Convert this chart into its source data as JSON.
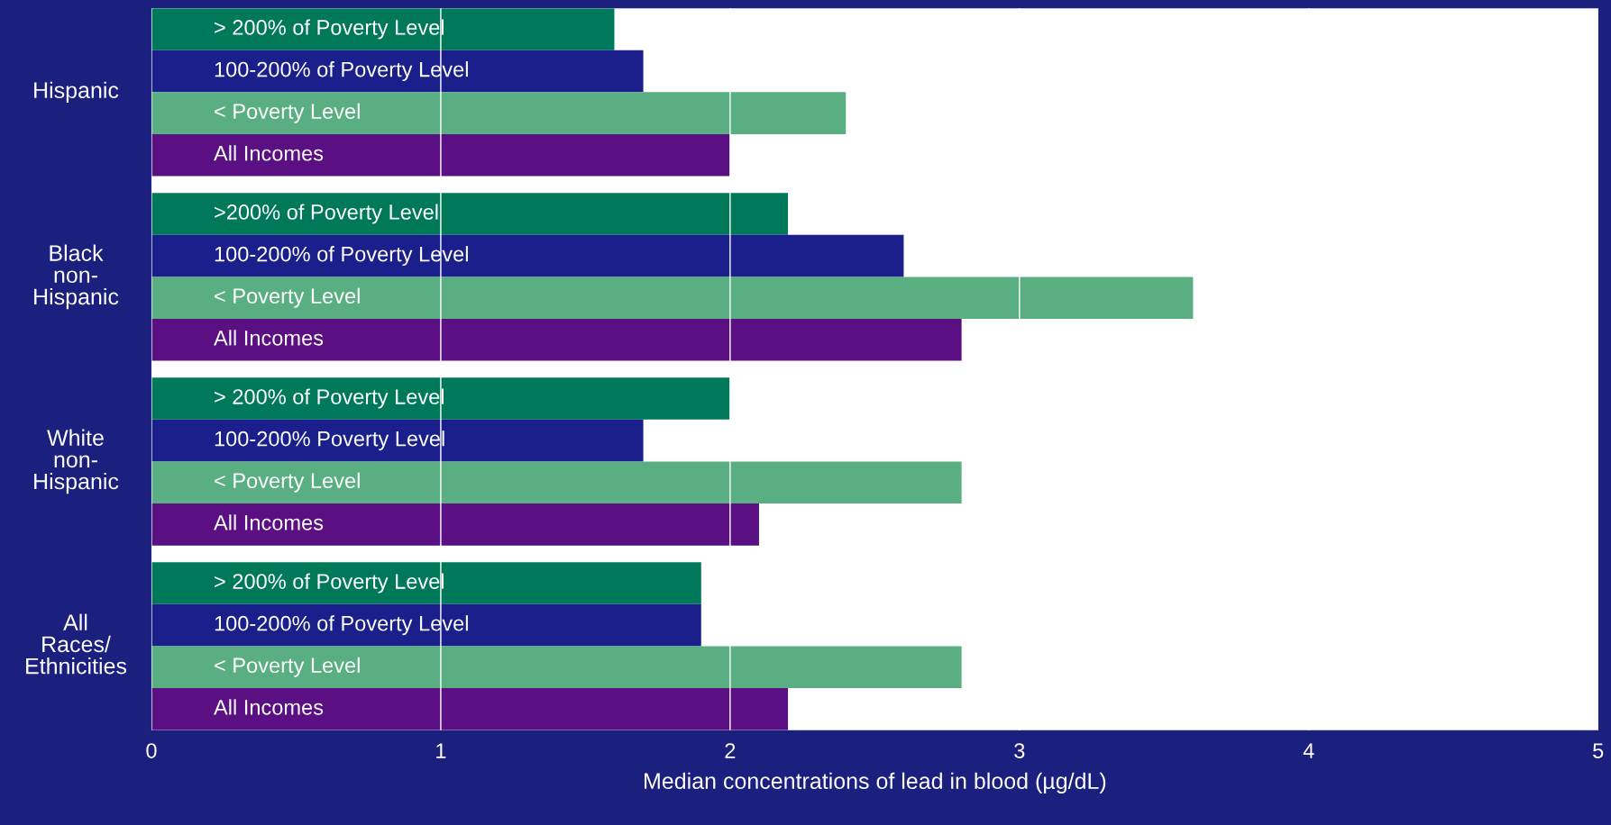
{
  "chart_data": {
    "type": "bar",
    "orientation": "horizontal",
    "xlabel": "Median concentrations of lead in blood (µg/dL)",
    "categories": [
      "> 200% of Poverty Level",
      "100-200% of Poverty Level",
      "< Poverty Level",
      "All Incomes",
      ">200% of Poverty Level",
      "100-200% of Poverty Level",
      "< Poverty Level",
      "All Incomes",
      "> 200% of Poverty Level",
      "100-200% Poverty Level",
      "< Poverty Level",
      "All Incomes",
      "> 200% of Poverty Level",
      "100-200% of Poverty Level",
      "< Poverty Level",
      "All Incomes"
    ],
    "values": [
      1.6,
      1.7,
      2.4,
      2.0,
      2.2,
      2.6,
      3.6,
      2.8,
      2.0,
      1.7,
      2.8,
      2.1,
      1.9,
      1.9,
      2.8,
      2.2
    ],
    "colors": [
      "#00785a",
      "#1a1f8c",
      "#5aaf82",
      "#5a0f82",
      "#00785a",
      "#1a1f8c",
      "#5aaf82",
      "#5a0f82",
      "#00785a",
      "#1a1f8c",
      "#5aaf82",
      "#5a0f82",
      "#00785a",
      "#1a1f8c",
      "#5aaf82",
      "#5a0f82"
    ],
    "annotations": [
      "Hispanic",
      "Black\nnon-\nHispanic",
      "White\nnon-\nHispanic",
      "All\nRaces/\nEthnicities"
    ],
    "xlim": [
      0,
      5
    ],
    "xticks": [
      0,
      1,
      2,
      3,
      4,
      5
    ],
    "grid": "x",
    "tick_labels": "x"
  }
}
